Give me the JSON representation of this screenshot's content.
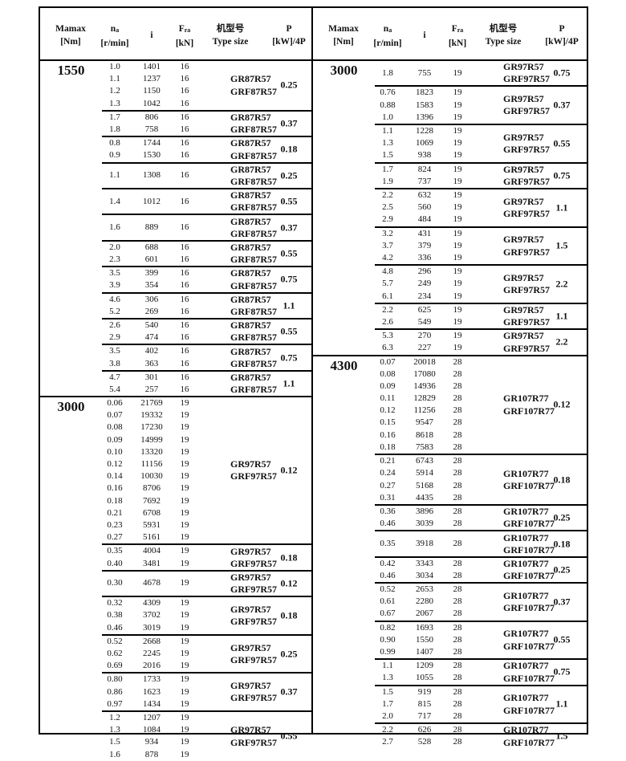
{
  "header": {
    "mamax": "Mamax",
    "mamax_unit": "[Nm]",
    "na": "n",
    "na_sub": "a",
    "na_unit": "[r/min]",
    "i": "i",
    "fra": "F",
    "fra_sub": "ra",
    "fra_unit": "[kN]",
    "type_cn": "机型号",
    "type_en": "Type size",
    "p": "P",
    "p_unit": "[kW]/4P"
  },
  "left_panel": {
    "sections": [
      {
        "mamax": "1550",
        "groups": [
          {
            "rows": [
              [
                "1.0",
                "1401",
                "16"
              ],
              [
                "1.1",
                "1237",
                "16"
              ],
              [
                "1.2",
                "1150",
                "16"
              ],
              [
                "1.3",
                "1042",
                "16"
              ]
            ],
            "types": [
              "GR87R57",
              "GRF87R57"
            ],
            "p": "0.25"
          },
          {
            "rows": [
              [
                "1.7",
                "806",
                "16"
              ],
              [
                "1.8",
                "758",
                "16"
              ]
            ],
            "types": [
              "GR87R57",
              "GRF87R57"
            ],
            "p": "0.37"
          },
          {
            "rows": [
              [
                "0.8",
                "1744",
                "16"
              ],
              [
                "0.9",
                "1530",
                "16"
              ]
            ],
            "types": [
              "GR87R57",
              "GRF87R57"
            ],
            "p": "0.18"
          },
          {
            "rows": [
              [
                "1.1",
                "1308",
                "16"
              ]
            ],
            "types": [
              "GR87R57",
              "GRF87R57"
            ],
            "p": "0.25"
          },
          {
            "rows": [
              [
                "1.4",
                "1012",
                "16"
              ]
            ],
            "types": [
              "GR87R57",
              "GRF87R57"
            ],
            "p": "0.55"
          },
          {
            "rows": [
              [
                "1.6",
                "889",
                "16"
              ]
            ],
            "types": [
              "GR87R57",
              "GRF87R57"
            ],
            "p": "0.37"
          },
          {
            "rows": [
              [
                "2.0",
                "688",
                "16"
              ],
              [
                "2.3",
                "601",
                "16"
              ]
            ],
            "types": [
              "GR87R57",
              "GRF87R57"
            ],
            "p": "0.55"
          },
          {
            "rows": [
              [
                "3.5",
                "399",
                "16"
              ],
              [
                "3.9",
                "354",
                "16"
              ]
            ],
            "types": [
              "GR87R57",
              "GRF87R57"
            ],
            "p": "0.75"
          },
          {
            "rows": [
              [
                "4.6",
                "306",
                "16"
              ],
              [
                "5.2",
                "269",
                "16"
              ]
            ],
            "types": [
              "GR87R57",
              "GRF87R57"
            ],
            "p": "1.1"
          },
          {
            "rows": [
              [
                "2.6",
                "540",
                "16"
              ],
              [
                "2.9",
                "474",
                "16"
              ]
            ],
            "types": [
              "GR87R57",
              "GRF87R57"
            ],
            "p": "0.55"
          },
          {
            "rows": [
              [
                "3.5",
                "402",
                "16"
              ],
              [
                "3.8",
                "363",
                "16"
              ]
            ],
            "types": [
              "GR87R57",
              "GRF87R57"
            ],
            "p": "0.75"
          },
          {
            "rows": [
              [
                "4.7",
                "301",
                "16"
              ],
              [
                "5.4",
                "257",
                "16"
              ]
            ],
            "types": [
              "GR87R57",
              "GRF87R57"
            ],
            "p": "1.1"
          }
        ]
      },
      {
        "mamax": "3000",
        "groups": [
          {
            "rows": [
              [
                "0.06",
                "21769",
                "19"
              ],
              [
                "0.07",
                "19332",
                "19"
              ],
              [
                "0.08",
                "17230",
                "19"
              ],
              [
                "0.09",
                "14999",
                "19"
              ],
              [
                "0.10",
                "13320",
                "19"
              ],
              [
                "0.12",
                "11156",
                "19"
              ],
              [
                "0.14",
                "10030",
                "19"
              ],
              [
                "0.16",
                "8706",
                "19"
              ],
              [
                "0.18",
                "7692",
                "19"
              ],
              [
                "0.21",
                "6708",
                "19"
              ],
              [
                "0.23",
                "5931",
                "19"
              ],
              [
                "0.27",
                "5161",
                "19"
              ]
            ],
            "types": [
              "GR97R57",
              "GRF97R57"
            ],
            "p": "0.12"
          },
          {
            "rows": [
              [
                "0.35",
                "4004",
                "19"
              ],
              [
                "0.40",
                "3481",
                "19"
              ]
            ],
            "types": [
              "GR97R57",
              "GRF97R57"
            ],
            "p": "0.18"
          },
          {
            "rows": [
              [
                "0.30",
                "4678",
                "19"
              ]
            ],
            "types": [
              "GR97R57",
              "GRF97R57"
            ],
            "p": "0.12"
          },
          {
            "rows": [
              [
                "0.32",
                "4309",
                "19"
              ],
              [
                "0.38",
                "3702",
                "19"
              ],
              [
                "0.46",
                "3019",
                "19"
              ]
            ],
            "types": [
              "GR97R57",
              "GRF97R57"
            ],
            "p": "0.18"
          },
          {
            "rows": [
              [
                "0.52",
                "2668",
                "19"
              ],
              [
                "0.62",
                "2245",
                "19"
              ],
              [
                "0.69",
                "2016",
                "19"
              ]
            ],
            "types": [
              "GR97R57",
              "GRF97R57"
            ],
            "p": "0.25"
          },
          {
            "rows": [
              [
                "0.80",
                "1733",
                "19"
              ],
              [
                "0.86",
                "1623",
                "19"
              ],
              [
                "0.97",
                "1434",
                "19"
              ]
            ],
            "types": [
              "GR97R57",
              "GRF97R57"
            ],
            "p": "0.37"
          },
          {
            "rows": [
              [
                "1.2",
                "1207",
                "19"
              ],
              [
                "1.3",
                "1084",
                "19"
              ],
              [
                "1.5",
                "934",
                "19"
              ],
              [
                "1.6",
                "878",
                "19"
              ]
            ],
            "types": [
              "GR97R57",
              "GRF97R57"
            ],
            "p": "0.55"
          }
        ]
      }
    ]
  },
  "right_panel": {
    "sections": [
      {
        "mamax": "3000",
        "groups": [
          {
            "rows": [
              [
                "1.8",
                "755",
                "19"
              ]
            ],
            "types": [
              "GR97R57",
              "GRF97R57"
            ],
            "p": "0.75"
          },
          {
            "rows": [
              [
                "0.76",
                "1823",
                "19"
              ],
              [
                "0.88",
                "1583",
                "19"
              ],
              [
                "1.0",
                "1396",
                "19"
              ]
            ],
            "types": [
              "GR97R57",
              "GRF97R57"
            ],
            "p": "0.37"
          },
          {
            "rows": [
              [
                "1.1",
                "1228",
                "19"
              ],
              [
                "1.3",
                "1069",
                "19"
              ],
              [
                "1.5",
                "938",
                "19"
              ]
            ],
            "types": [
              "GR97R57",
              "GRF97R57"
            ],
            "p": "0.55"
          },
          {
            "rows": [
              [
                "1.7",
                "824",
                "19"
              ],
              [
                "1.9",
                "737",
                "19"
              ]
            ],
            "types": [
              "GR97R57",
              "GRF97R57"
            ],
            "p": "0.75"
          },
          {
            "rows": [
              [
                "2.2",
                "632",
                "19"
              ],
              [
                "2.5",
                "560",
                "19"
              ],
              [
                "2.9",
                "484",
                "19"
              ]
            ],
            "types": [
              "GR97R57",
              "GRF97R57"
            ],
            "p": "1.1"
          },
          {
            "rows": [
              [
                "3.2",
                "431",
                "19"
              ],
              [
                "3.7",
                "379",
                "19"
              ],
              [
                "4.2",
                "336",
                "19"
              ]
            ],
            "types": [
              "GR97R57",
              "GRF97R57"
            ],
            "p": "1.5"
          },
          {
            "rows": [
              [
                "4.8",
                "296",
                "19"
              ],
              [
                "5.7",
                "249",
                "19"
              ],
              [
                "6.1",
                "234",
                "19"
              ]
            ],
            "types": [
              "GR97R57",
              "GRF97R57"
            ],
            "p": "2.2"
          },
          {
            "rows": [
              [
                "2.2",
                "625",
                "19"
              ],
              [
                "2.6",
                "549",
                "19"
              ]
            ],
            "types": [
              "GR97R57",
              "GRF97R57"
            ],
            "p": "1.1"
          },
          {
            "rows": [
              [
                "5.3",
                "270",
                "19"
              ],
              [
                "6.3",
                "227",
                "19"
              ]
            ],
            "types": [
              "GR97R57",
              "GRF97R57"
            ],
            "p": "2.2"
          }
        ]
      },
      {
        "mamax": "4300",
        "groups": [
          {
            "rows": [
              [
                "0.07",
                "20018",
                "28"
              ],
              [
                "0.08",
                "17080",
                "28"
              ],
              [
                "0.09",
                "14936",
                "28"
              ],
              [
                "0.11",
                "12829",
                "28"
              ],
              [
                "0.12",
                "11256",
                "28"
              ],
              [
                "0.15",
                "9547",
                "28"
              ],
              [
                "0.16",
                "8618",
                "28"
              ],
              [
                "0.18",
                "7583",
                "28"
              ]
            ],
            "types": [
              "GR107R77",
              "GRF107R77"
            ],
            "p": "0.12"
          },
          {
            "rows": [
              [
                "0.21",
                "6743",
                "28"
              ],
              [
                "0.24",
                "5914",
                "28"
              ],
              [
                "0.27",
                "5168",
                "28"
              ],
              [
                "0.31",
                "4435",
                "28"
              ]
            ],
            "types": [
              "GR107R77",
              "GRF107R77"
            ],
            "p": "0.18"
          },
          {
            "rows": [
              [
                "0.36",
                "3896",
                "28"
              ],
              [
                "0.46",
                "3039",
                "28"
              ]
            ],
            "types": [
              "GR107R77",
              "GRF107R77"
            ],
            "p": "0.25"
          },
          {
            "rows": [
              [
                "0.35",
                "3918",
                "28"
              ]
            ],
            "types": [
              "GR107R77",
              "GRF107R77"
            ],
            "p": "0.18"
          },
          {
            "rows": [
              [
                "0.42",
                "3343",
                "28"
              ],
              [
                "0.46",
                "3034",
                "28"
              ]
            ],
            "types": [
              "GR107R77",
              "GRF107R77"
            ],
            "p": "0.25"
          },
          {
            "rows": [
              [
                "0.52",
                "2653",
                "28"
              ],
              [
                "0.61",
                "2280",
                "28"
              ],
              [
                "0.67",
                "2067",
                "28"
              ]
            ],
            "types": [
              "GR107R77",
              "GRF107R77"
            ],
            "p": "0.37"
          },
          {
            "rows": [
              [
                "0.82",
                "1693",
                "28"
              ],
              [
                "0.90",
                "1550",
                "28"
              ],
              [
                "0.99",
                "1407",
                "28"
              ]
            ],
            "types": [
              "GR107R77",
              "GRF107R77"
            ],
            "p": "0.55"
          },
          {
            "rows": [
              [
                "1.1",
                "1209",
                "28"
              ],
              [
                "1.3",
                "1055",
                "28"
              ]
            ],
            "types": [
              "GR107R77",
              "GRF107R77"
            ],
            "p": "0.75"
          },
          {
            "rows": [
              [
                "1.5",
                "919",
                "28"
              ],
              [
                "1.7",
                "815",
                "28"
              ],
              [
                "2.0",
                "717",
                "28"
              ]
            ],
            "types": [
              "GR107R77",
              "GRF107R77"
            ],
            "p": "1.1"
          },
          {
            "rows": [
              [
                "2.2",
                "626",
                "28"
              ],
              [
                "2.7",
                "528",
                "28"
              ]
            ],
            "types": [
              "GR107R77",
              "GRF107R77"
            ],
            "p": "1.5"
          }
        ]
      }
    ]
  }
}
